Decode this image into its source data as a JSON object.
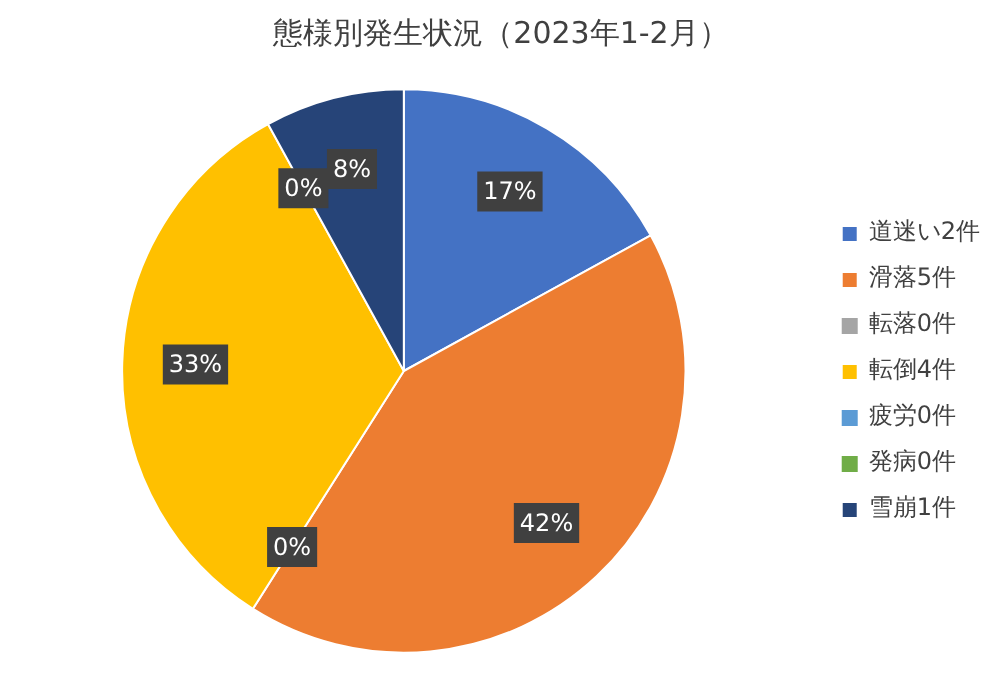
{
  "chart_data": {
    "type": "pie",
    "title": "態様別発生状況（2023年1-2月）",
    "categories": [
      "道迷い2件",
      "滑落5件",
      "転落0件",
      "転倒4件",
      "疲労0件",
      "発病0件",
      "雪崩1件"
    ],
    "values": [
      17,
      42,
      0,
      33,
      0,
      0,
      8
    ],
    "colors": [
      "#4472c4",
      "#ed7d31",
      "#a5a5a5",
      "#ffc000",
      "#5b9bd5",
      "#70ad47",
      "#264478"
    ],
    "value_labels": [
      "17%",
      "42%",
      "0%",
      "33%",
      "0%",
      null,
      "8%"
    ],
    "legend": "right"
  }
}
